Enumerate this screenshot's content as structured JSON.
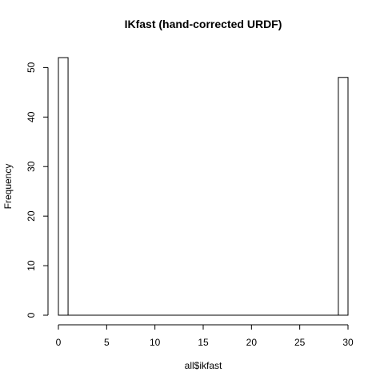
{
  "chart_data": {
    "type": "bar",
    "title": "IKfast (hand-corrected URDF)",
    "xlabel": "all$ikfast",
    "ylabel": "Frequency",
    "bins": [
      {
        "x0": 0,
        "x1": 1,
        "count": 52
      },
      {
        "x0": 1,
        "x1": 2,
        "count": 0
      },
      {
        "x0": 2,
        "x1": 3,
        "count": 0
      },
      {
        "x0": 3,
        "x1": 4,
        "count": 0
      },
      {
        "x0": 4,
        "x1": 5,
        "count": 0
      },
      {
        "x0": 5,
        "x1": 6,
        "count": 0
      },
      {
        "x0": 6,
        "x1": 7,
        "count": 0
      },
      {
        "x0": 7,
        "x1": 8,
        "count": 0
      },
      {
        "x0": 8,
        "x1": 9,
        "count": 0
      },
      {
        "x0": 9,
        "x1": 10,
        "count": 0
      },
      {
        "x0": 10,
        "x1": 11,
        "count": 0
      },
      {
        "x0": 11,
        "x1": 12,
        "count": 0
      },
      {
        "x0": 12,
        "x1": 13,
        "count": 0
      },
      {
        "x0": 13,
        "x1": 14,
        "count": 0
      },
      {
        "x0": 14,
        "x1": 15,
        "count": 0
      },
      {
        "x0": 15,
        "x1": 16,
        "count": 0
      },
      {
        "x0": 16,
        "x1": 17,
        "count": 0
      },
      {
        "x0": 17,
        "x1": 18,
        "count": 0
      },
      {
        "x0": 18,
        "x1": 19,
        "count": 0
      },
      {
        "x0": 19,
        "x1": 20,
        "count": 0
      },
      {
        "x0": 20,
        "x1": 21,
        "count": 0
      },
      {
        "x0": 21,
        "x1": 22,
        "count": 0
      },
      {
        "x0": 22,
        "x1": 23,
        "count": 0
      },
      {
        "x0": 23,
        "x1": 24,
        "count": 0
      },
      {
        "x0": 24,
        "x1": 25,
        "count": 0
      },
      {
        "x0": 25,
        "x1": 26,
        "count": 0
      },
      {
        "x0": 26,
        "x1": 27,
        "count": 0
      },
      {
        "x0": 27,
        "x1": 28,
        "count": 0
      },
      {
        "x0": 28,
        "x1": 29,
        "count": 0
      },
      {
        "x0": 29,
        "x1": 30,
        "count": 48
      }
    ],
    "xlim": [
      0,
      30
    ],
    "ylim": [
      0,
      52
    ],
    "x_ticks": [
      0,
      5,
      10,
      15,
      20,
      25,
      30
    ],
    "y_ticks": [
      0,
      10,
      20,
      30,
      40,
      50
    ],
    "grid": false,
    "bar_fill": "#ffffff",
    "bar_stroke": "#000000"
  }
}
